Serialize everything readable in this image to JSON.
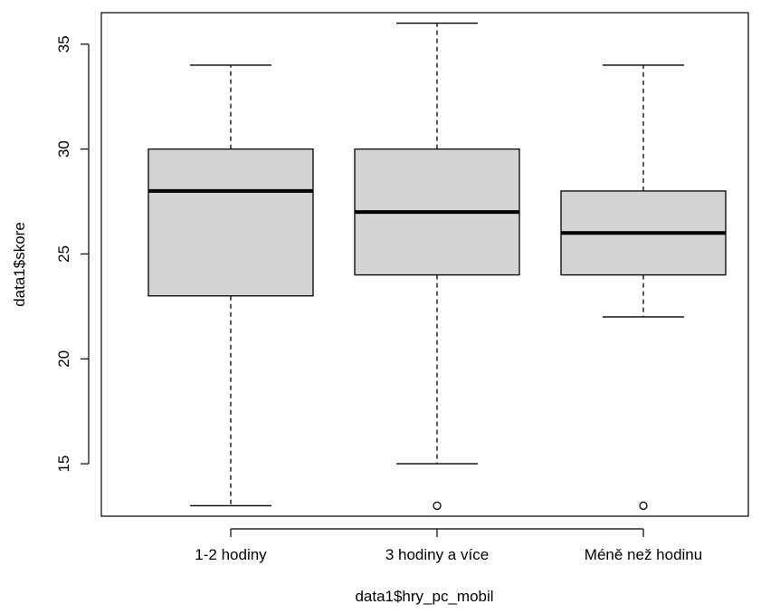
{
  "chart_data": {
    "type": "boxplot",
    "xlabel": "data1$hry_pc_mobil",
    "ylabel": "data1$skore",
    "ylim": [
      12.5,
      36.5
    ],
    "yticks": [
      15,
      20,
      25,
      30,
      35
    ],
    "ytick_labels": [
      "15",
      "20",
      "25",
      "30",
      "35"
    ],
    "categories": [
      "1-2 hodiny",
      "3 hodiny a více",
      "Méně než hodinu"
    ],
    "boxes": [
      {
        "category": "1-2 hodiny",
        "whisker_low": 13,
        "q1": 23,
        "median": 28,
        "q3": 30,
        "whisker_high": 34,
        "outliers": []
      },
      {
        "category": "3 hodiny a více",
        "whisker_low": 15,
        "q1": 24,
        "median": 27,
        "q3": 30,
        "whisker_high": 36,
        "outliers": [
          13
        ]
      },
      {
        "category": "Méně než hodinu",
        "whisker_low": 22,
        "q1": 24,
        "median": 26,
        "q3": 28,
        "whisker_high": 34,
        "outliers": [
          13
        ]
      }
    ],
    "box_fill": "#d3d3d3",
    "grid": false
  }
}
